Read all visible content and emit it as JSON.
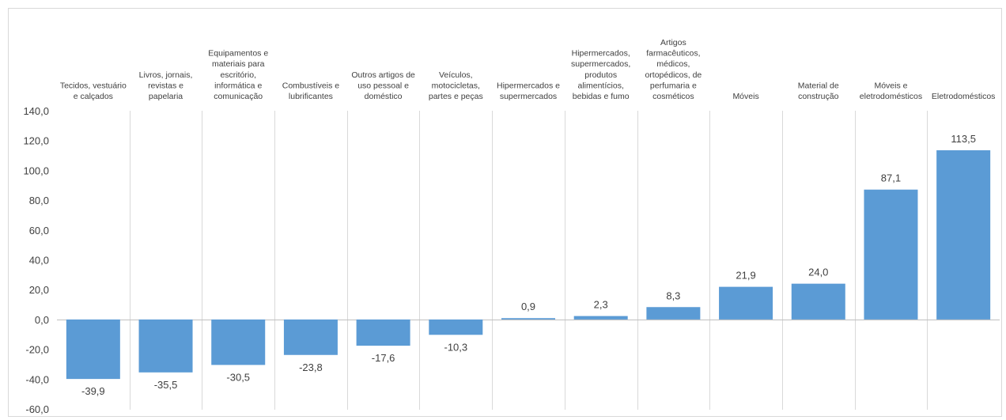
{
  "chart_data": {
    "type": "bar",
    "title": "",
    "xlabel": "",
    "ylabel": "",
    "ylim": [
      -60,
      140
    ],
    "ytick_step": 20,
    "ytick_labels": [
      "140,0",
      "120,0",
      "100,0",
      "80,0",
      "60,0",
      "40,0",
      "20,0",
      "0,0",
      "-20,0",
      "-40,0",
      "-60,0"
    ],
    "grid": "vertical separators between categories",
    "legend": "none",
    "bar_color": "#5b9bd5",
    "categories": [
      [
        "Tecidos, vestuário",
        "e calçados"
      ],
      [
        "Livros, jornais,",
        "revistas e",
        "papelaria"
      ],
      [
        "Equipamentos e",
        "materiais para",
        "escritório,",
        "informática e",
        "comunicação"
      ],
      [
        "Combustíveis e",
        "lubrificantes"
      ],
      [
        "Outros artigos de",
        "uso pessoal e",
        "doméstico"
      ],
      [
        "Veículos,",
        "motocicletas,",
        "partes e peças"
      ],
      [
        "Hipermercados e",
        "supermercados"
      ],
      [
        "Hipermercados,",
        "supermercados,",
        "produtos",
        "alimentícios,",
        "bebidas e fumo"
      ],
      [
        "Artigos",
        "farmacêuticos,",
        "médicos,",
        "ortopédicos, de",
        "perfumaria e",
        "cosméticos"
      ],
      [
        "Móveis"
      ],
      [
        "Material de",
        "construção"
      ],
      [
        "Móveis e",
        "eletrodomésticos"
      ],
      [
        "Eletrodomésticos"
      ]
    ],
    "values": [
      -39.9,
      -35.5,
      -30.5,
      -23.8,
      -17.6,
      -10.3,
      0.9,
      2.3,
      8.3,
      21.9,
      24.0,
      87.1,
      113.5
    ],
    "value_labels": [
      "-39,9",
      "-35,5",
      "-30,5",
      "-23,8",
      "-17,6",
      "-10,3",
      "0,9",
      "2,3",
      "8,3",
      "21,9",
      "24,0",
      "87,1",
      "113,5"
    ]
  }
}
